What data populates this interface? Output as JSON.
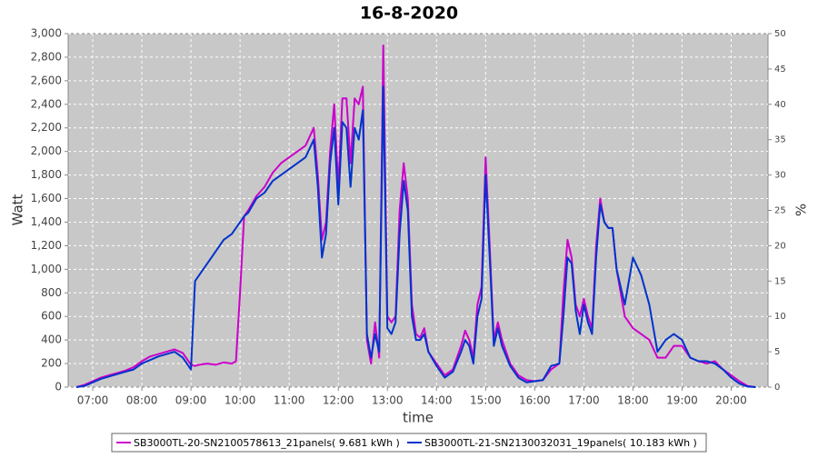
{
  "chart_data": {
    "type": "line",
    "title": "16-8-2020",
    "xlabel": "time",
    "ylabel": "Watt",
    "y2label": "%",
    "x": [
      "06:40",
      "06:50",
      "07:00",
      "07:10",
      "07:20",
      "07:30",
      "07:40",
      "07:50",
      "08:00",
      "08:10",
      "08:20",
      "08:30",
      "08:40",
      "08:50",
      "09:00",
      "09:05",
      "09:10",
      "09:20",
      "09:30",
      "09:40",
      "09:50",
      "09:55",
      "10:00",
      "10:05",
      "10:10",
      "10:20",
      "10:30",
      "10:40",
      "10:50",
      "11:00",
      "11:10",
      "11:20",
      "11:30",
      "11:35",
      "11:40",
      "11:45",
      "11:50",
      "11:55",
      "12:00",
      "12:05",
      "12:10",
      "12:15",
      "12:20",
      "12:25",
      "12:30",
      "12:35",
      "12:40",
      "12:45",
      "12:50",
      "12:55",
      "13:00",
      "13:05",
      "13:10",
      "13:15",
      "13:20",
      "13:25",
      "13:30",
      "13:35",
      "13:40",
      "13:45",
      "13:50",
      "14:00",
      "14:10",
      "14:20",
      "14:30",
      "14:35",
      "14:40",
      "14:45",
      "14:50",
      "14:55",
      "15:00",
      "15:05",
      "15:10",
      "15:15",
      "15:20",
      "15:30",
      "15:40",
      "15:50",
      "16:00",
      "16:10",
      "16:20",
      "16:30",
      "16:35",
      "16:40",
      "16:45",
      "16:50",
      "16:55",
      "17:00",
      "17:05",
      "17:10",
      "17:15",
      "17:20",
      "17:25",
      "17:30",
      "17:35",
      "17:40",
      "17:50",
      "18:00",
      "18:10",
      "18:20",
      "18:30",
      "18:40",
      "18:50",
      "19:00",
      "19:10",
      "19:20",
      "19:30",
      "19:40",
      "19:50",
      "20:00",
      "20:10",
      "20:20",
      "20:30"
    ],
    "series": [
      {
        "name": "SB3000TL-20-SN2100578613_21panels( 9.681 kWh )",
        "color": "#cc00cc",
        "values": [
          0,
          20,
          50,
          80,
          100,
          120,
          140,
          170,
          220,
          260,
          280,
          300,
          320,
          290,
          190,
          180,
          190,
          200,
          190,
          210,
          200,
          220,
          800,
          1450,
          1500,
          1620,
          1700,
          1820,
          1900,
          1950,
          2000,
          2050,
          2200,
          1800,
          1250,
          1400,
          2000,
          2400,
          1700,
          2450,
          2450,
          1900,
          2450,
          2400,
          2550,
          400,
          200,
          550,
          250,
          2900,
          600,
          550,
          600,
          1500,
          1900,
          1600,
          700,
          450,
          420,
          500,
          300,
          200,
          100,
          150,
          350,
          480,
          400,
          250,
          700,
          850,
          1950,
          1200,
          400,
          550,
          400,
          200,
          100,
          60,
          50,
          60,
          150,
          200,
          800,
          1250,
          1100,
          700,
          600,
          750,
          600,
          500,
          1200,
          1600,
          1400,
          1350,
          1350,
          1000,
          600,
          500,
          450,
          400,
          250,
          250,
          350,
          350,
          250,
          220,
          200,
          220,
          150,
          100,
          50,
          10,
          0
        ]
      },
      {
        "name": "SB3000TL-21-SN2130032031_19panels( 10.183 kWh )",
        "color": "#0033cc",
        "values": [
          0,
          10,
          40,
          70,
          90,
          110,
          130,
          150,
          200,
          230,
          260,
          280,
          300,
          250,
          150,
          900,
          950,
          1050,
          1150,
          1250,
          1300,
          1350,
          1400,
          1450,
          1480,
          1600,
          1650,
          1750,
          1800,
          1850,
          1900,
          1950,
          2100,
          1700,
          1100,
          1300,
          1900,
          2200,
          1550,
          2250,
          2200,
          1700,
          2200,
          2100,
          2350,
          450,
          250,
          450,
          300,
          2550,
          500,
          450,
          550,
          1300,
          1750,
          1500,
          600,
          400,
          400,
          450,
          300,
          180,
          80,
          130,
          300,
          400,
          350,
          200,
          600,
          750,
          1800,
          1100,
          350,
          500,
          350,
          180,
          80,
          40,
          50,
          60,
          180,
          200,
          600,
          1100,
          1050,
          650,
          450,
          700,
          550,
          450,
          1100,
          1550,
          1400,
          1350,
          1350,
          1000,
          700,
          1100,
          950,
          700,
          300,
          400,
          450,
          400,
          250,
          220,
          220,
          200,
          150,
          80,
          30,
          5,
          0
        ]
      }
    ],
    "xlim": [
      "06:30",
      "20:45"
    ],
    "xticks": [
      "07:00",
      "08:00",
      "09:00",
      "10:00",
      "11:00",
      "12:00",
      "13:00",
      "14:00",
      "15:00",
      "16:00",
      "17:00",
      "18:00",
      "19:00",
      "20:00"
    ],
    "ylim": [
      0,
      3000
    ],
    "yticks": [
      0,
      200,
      400,
      600,
      800,
      {
        "value": 1000,
        "label": "1,000"
      },
      {
        "value": 1200,
        "label": "1,200"
      },
      {
        "value": 1400,
        "label": "1,400"
      },
      {
        "value": 1600,
        "label": "1,600"
      },
      {
        "value": 1800,
        "label": "1,800"
      },
      {
        "value": 2000,
        "label": "2,000"
      },
      {
        "value": 2200,
        "label": "2,200"
      },
      {
        "value": 2400,
        "label": "2,400"
      },
      {
        "value": 2600,
        "label": "2,600"
      },
      {
        "value": 2800,
        "label": "2,800"
      },
      {
        "value": 3000,
        "label": "3,000"
      }
    ],
    "y2lim": [
      0,
      50
    ],
    "y2ticks": [
      0,
      5,
      10,
      15,
      20,
      25,
      30,
      35,
      40,
      45,
      50
    ],
    "grid": true
  }
}
